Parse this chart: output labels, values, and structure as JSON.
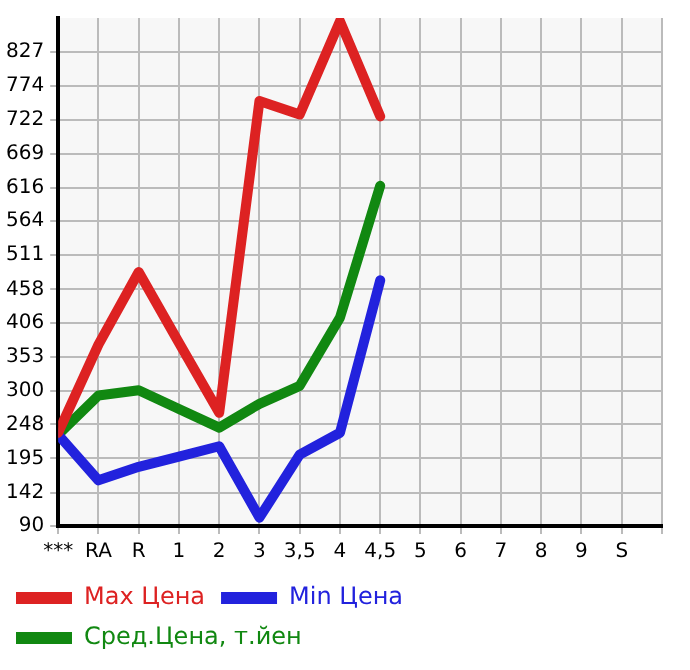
{
  "chart_data": {
    "type": "line",
    "categories": [
      "***",
      "RA",
      "R",
      "1",
      "2",
      "3",
      "3,5",
      "4",
      "4,5",
      "5",
      "6",
      "7",
      "8",
      "9",
      "S"
    ],
    "series": [
      {
        "name": "Max Цена",
        "color": "#dd2222",
        "values": [
          235,
          372,
          485,
          375,
          266,
          751,
          730,
          875,
          727,
          null,
          null,
          null,
          null,
          null,
          null
        ]
      },
      {
        "name": "Min Цена",
        "color": "#2222dd",
        "values": [
          232,
          161,
          182,
          198,
          214,
          103,
          201,
          235,
          472,
          null,
          null,
          null,
          null,
          null,
          null
        ]
      },
      {
        "name": "Сред.Цена, т.йен",
        "color": "#118811",
        "values": [
          232,
          293,
          301,
          272,
          243,
          280,
          308,
          414,
          619,
          null,
          null,
          null,
          null,
          null,
          null
        ]
      }
    ],
    "ylim": [
      90,
      880
    ],
    "yticks": [
      90,
      142,
      195,
      248,
      300,
      353,
      406,
      458,
      511,
      564,
      616,
      669,
      722,
      774,
      827
    ],
    "grid": true,
    "legend": "bottom",
    "marker": "none"
  }
}
